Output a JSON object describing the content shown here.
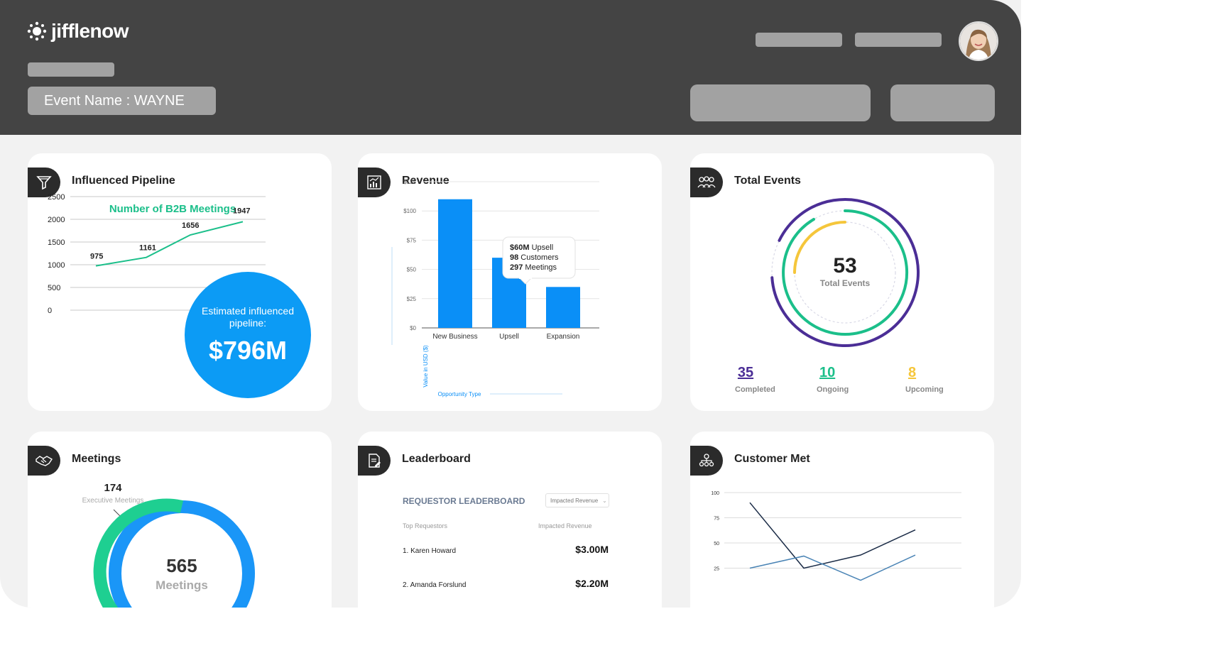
{
  "header": {
    "logo_text": "jifflenow",
    "event_name": "Event Name : WAYNE"
  },
  "cards": {
    "pipeline": {
      "title": "Influenced Pipeline",
      "chart_title": "Number of B2B Meetings",
      "bubble_label": "Estimated influenced pipeline:",
      "bubble_value": "$796M"
    },
    "revenue": {
      "title": "Revenue",
      "tooltip": {
        "line1_bold": "$60M",
        "line1_rest": " Upsell",
        "line2_bold": "98",
        "line2_rest": " Customers",
        "line3_bold": "297",
        "line3_rest": " Meetings"
      }
    },
    "events": {
      "title": "Total Events",
      "center_value": "53",
      "center_label": "Total Events",
      "stats": [
        {
          "value": "35",
          "label": "Completed",
          "color": "#4b2e96"
        },
        {
          "value": "10",
          "label": "Ongoing",
          "color": "#1bbf8a"
        },
        {
          "value": "8",
          "label": "Upcoming",
          "color": "#f5c63b"
        }
      ]
    },
    "meetings": {
      "title": "Meetings",
      "exec_value": "174",
      "exec_label": "Executive Meetings",
      "center_value": "565",
      "center_label": "Meetings"
    },
    "leaderboard": {
      "title": "Leaderboard",
      "heading": "REQUESTOR LEADERBOARD",
      "dropdown": "Impacted Revenue",
      "col1": "Top Requestors",
      "col2": "Impacted Revenue",
      "rows": [
        {
          "name": "1. Karen Howard",
          "value": "$3.00M"
        },
        {
          "name": "2. Amanda Forslund",
          "value": "$2.20M"
        }
      ]
    },
    "customer": {
      "title": "Customer Met"
    }
  },
  "chart_data": [
    {
      "type": "line",
      "title": "Number of B2B Meetings",
      "x": [
        1,
        2,
        3,
        4
      ],
      "values": [
        975,
        1161,
        1656,
        1947
      ],
      "ylim": [
        0,
        2500
      ],
      "yticks": [
        0,
        500,
        1000,
        1500,
        2000,
        2500
      ],
      "color": "#1bbf8a"
    },
    {
      "type": "bar",
      "categories": [
        "New Business",
        "Upsell",
        "Expansion"
      ],
      "values": [
        110,
        60,
        35
      ],
      "ylim": [
        0,
        125
      ],
      "yticks": [
        "$0",
        "$25",
        "$50",
        "$75",
        "$100",
        "$125"
      ],
      "ylabel": "Value in USD ($)",
      "xlabel": "Opportunity Type",
      "color": "#0a8ff7"
    },
    {
      "type": "line",
      "yticks": [
        25,
        50,
        75,
        100
      ],
      "ylim": [
        0,
        100
      ],
      "series": [
        {
          "values": [
            90,
            25,
            38,
            63
          ],
          "color": "#1a2b46"
        },
        {
          "values": [
            25,
            37,
            13,
            38
          ],
          "color": "#4a84b5"
        }
      ]
    }
  ]
}
